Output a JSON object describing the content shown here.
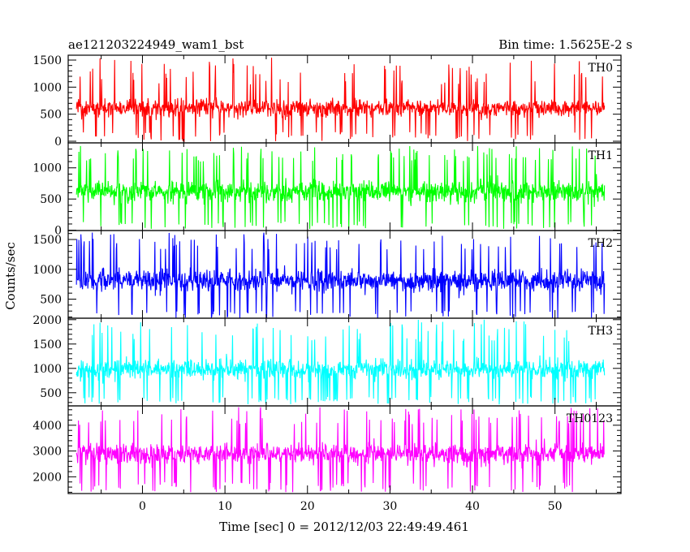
{
  "chart_data": {
    "type": "line",
    "title_left": "ae121203224949_wam1_bst",
    "title_right": "Bin time: 1.5625E-2 s",
    "xlabel": "Time [sec] 0 = 2012/12/03 22:49:49.461",
    "ylabel": "Counts/sec",
    "xlim": [
      -9,
      58
    ],
    "x_ticks": [
      0,
      10,
      20,
      30,
      40,
      50
    ],
    "x_data_range": [
      -8,
      56
    ],
    "panels": [
      {
        "name": "TH0",
        "color": "#ff0000",
        "ylim": [
          -30,
          1590
        ],
        "y_ticks": [
          0,
          500,
          1000,
          1500
        ],
        "mean": 580,
        "band_low": 170,
        "band_high": 1050,
        "spike_min": 0,
        "spike_max": 1560
      },
      {
        "name": "TH1",
        "color": "#00ff00",
        "ylim": [
          -5,
          1400
        ],
        "y_ticks": [
          0,
          500,
          1000
        ],
        "mean": 620,
        "band_low": 140,
        "band_high": 1100,
        "spike_min": 20,
        "spike_max": 1350
      },
      {
        "name": "TH2",
        "color": "#0000ff",
        "ylim": [
          180,
          1650
        ],
        "y_ticks": [
          500,
          1000,
          1500
        ],
        "mean": 820,
        "band_low": 300,
        "band_high": 1320,
        "spike_min": 180,
        "spike_max": 1620
      },
      {
        "name": "TH3",
        "color": "#00ffff",
        "ylim": [
          230,
          2030
        ],
        "y_ticks": [
          500,
          1000,
          1500,
          2000
        ],
        "mean": 950,
        "band_low": 420,
        "band_high": 1550,
        "spike_min": 260,
        "spike_max": 2000
      },
      {
        "name": "TH0123",
        "color": "#ff00ff",
        "ylim": [
          1350,
          4750
        ],
        "y_ticks": [
          2000,
          3000,
          4000
        ],
        "mean": 2950,
        "band_low": 1800,
        "band_high": 4000,
        "spike_min": 1400,
        "spike_max": 4700
      }
    ]
  }
}
